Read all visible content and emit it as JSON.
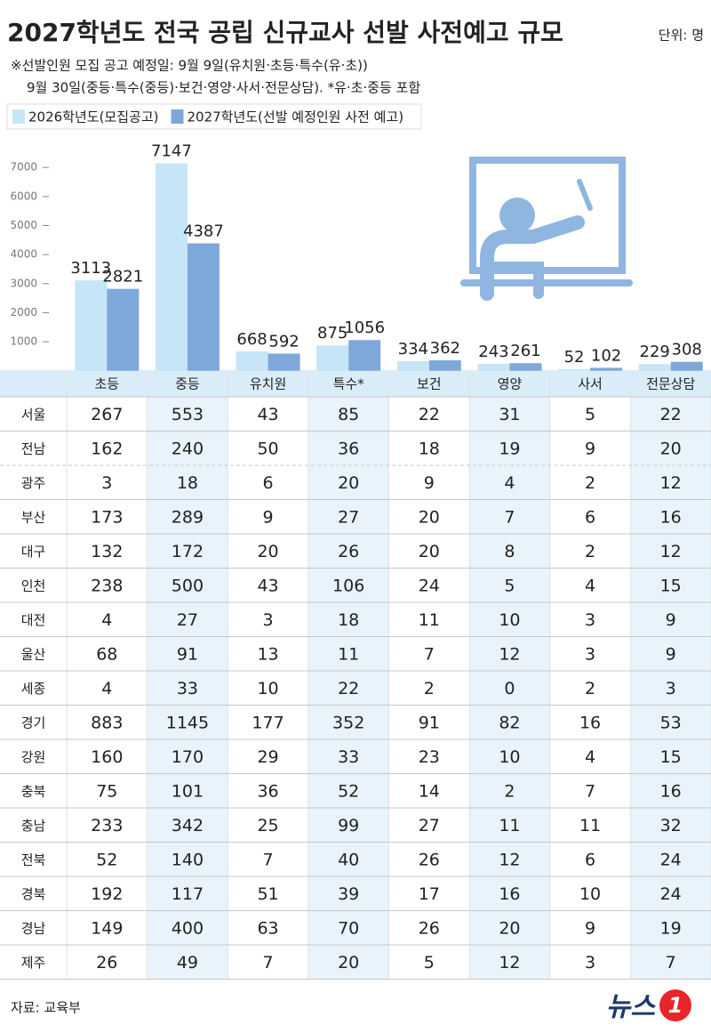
{
  "header": {
    "title": "2027학년도 전국 공립 신규교사 선발 사전예고 규모",
    "unit": "단위: 명",
    "notes": [
      "※선발인원 모집 공고 예정일: 9월 9일(유치원·초등·특수(유·초))",
      "9월 30일(중등·특수(중등)·보건·영양·사서·전문상담).   *유·초·중등 포함"
    ]
  },
  "chart_data": {
    "type": "bar",
    "categories": [
      "초등",
      "중등",
      "유치원",
      "특수*",
      "보건",
      "영양",
      "사서",
      "전문상담"
    ],
    "series": [
      {
        "name": "2026학년도(모집공고)",
        "color": "#c6e6f7",
        "values": [
          3113,
          7147,
          668,
          875,
          334,
          243,
          52,
          229
        ]
      },
      {
        "name": "2027학년도(선발 예정인원 사전 예고)",
        "color": "#7fa8da",
        "values": [
          2821,
          4387,
          592,
          1056,
          362,
          261,
          102,
          308
        ]
      }
    ],
    "ylim": [
      0,
      8000
    ],
    "yticks": [
      1000,
      2000,
      3000,
      4000,
      5000,
      6000,
      7000
    ]
  },
  "table": {
    "rows": [
      [
        "서울",
        "267",
        "553",
        "43",
        "85",
        "22",
        "31",
        "5",
        "22"
      ],
      [
        "전남",
        "162",
        "240",
        "50",
        "36",
        "18",
        "19",
        "9",
        "20"
      ],
      [
        "광주",
        "3",
        "18",
        "6",
        "20",
        "9",
        "4",
        "2",
        "12"
      ],
      [
        "부산",
        "173",
        "289",
        "9",
        "27",
        "20",
        "7",
        "6",
        "16"
      ],
      [
        "대구",
        "132",
        "172",
        "20",
        "26",
        "20",
        "8",
        "2",
        "12"
      ],
      [
        "인천",
        "238",
        "500",
        "43",
        "106",
        "24",
        "5",
        "4",
        "15"
      ],
      [
        "대전",
        "4",
        "27",
        "3",
        "18",
        "11",
        "10",
        "3",
        "9"
      ],
      [
        "울산",
        "68",
        "91",
        "13",
        "11",
        "7",
        "12",
        "3",
        "9"
      ],
      [
        "세종",
        "4",
        "33",
        "10",
        "22",
        "2",
        "0",
        "2",
        "3"
      ],
      [
        "경기",
        "883",
        "1145",
        "177",
        "352",
        "91",
        "82",
        "16",
        "53"
      ],
      [
        "강원",
        "160",
        "170",
        "29",
        "33",
        "23",
        "10",
        "4",
        "15"
      ],
      [
        "충북",
        "75",
        "101",
        "36",
        "52",
        "14",
        "2",
        "7",
        "16"
      ],
      [
        "충남",
        "233",
        "342",
        "25",
        "99",
        "27",
        "11",
        "11",
        "32"
      ],
      [
        "전북",
        "52",
        "140",
        "7",
        "40",
        "26",
        "12",
        "6",
        "24"
      ],
      [
        "경북",
        "192",
        "117",
        "51",
        "39",
        "17",
        "16",
        "10",
        "24"
      ],
      [
        "경남",
        "149",
        "400",
        "63",
        "70",
        "26",
        "20",
        "9",
        "19"
      ],
      [
        "제주",
        "26",
        "49",
        "7",
        "20",
        "5",
        "12",
        "3",
        "7"
      ]
    ]
  },
  "footer": {
    "source": "자료: 교육부",
    "logo_text": "뉴스",
    "logo_mark": "1"
  }
}
